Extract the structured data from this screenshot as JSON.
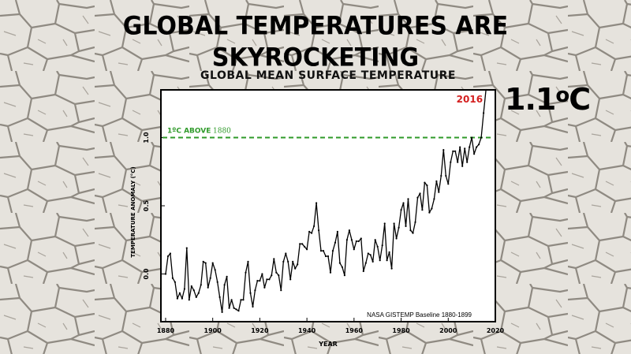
{
  "headline": {
    "line1": "GLOBAL TEMPERATURES ARE",
    "line2": "SKYROCKETING"
  },
  "big_value": {
    "number": "1.1",
    "degree": "o",
    "unit": "C"
  },
  "colors": {
    "line": "#000000",
    "threshold": "#2f9a2a",
    "highlight": "#d42020",
    "plot_bg": "#ffffff"
  },
  "chart_data": {
    "type": "line",
    "title": "GLOBAL MEAN SURFACE TEMPERATURE",
    "xlabel": "YEAR",
    "ylabel": "TEMPERATURE ANOMALY (°C)",
    "xlim": [
      1878,
      2020
    ],
    "ylim": [
      -0.35,
      1.35
    ],
    "xticks": [
      1880,
      1900,
      1920,
      1940,
      1960,
      1980,
      2000,
      2020
    ],
    "yticks": [
      "0.0",
      "0.5",
      "1.0"
    ],
    "ytick_values": [
      0.0,
      0.5,
      1.0
    ],
    "grid": false,
    "threshold": {
      "value": 1.0,
      "label_part1": "1ºC ABOVE",
      "label_part2": "1880"
    },
    "highlight_label": "2016",
    "source_note": "NASA GISTEMP Baseline  1880-1899",
    "series": [
      {
        "x": [
          1880,
          1881,
          1882,
          1883,
          1884,
          1885,
          1886,
          1887,
          1888,
          1889,
          1890,
          1891,
          1892,
          1893,
          1894,
          1895,
          1896,
          1897,
          1898,
          1899,
          1900,
          1901,
          1902,
          1903,
          1904,
          1905,
          1906,
          1907,
          1908,
          1909,
          1910,
          1911,
          1912,
          1913,
          1914,
          1915,
          1916,
          1917,
          1918,
          1919,
          1920,
          1921,
          1922,
          1923,
          1924,
          1925,
          1926,
          1927,
          1928,
          1929,
          1930,
          1931,
          1932,
          1933,
          1934,
          1935,
          1936,
          1937,
          1938,
          1939,
          1940,
          1941,
          1942,
          1943,
          1944,
          1945,
          1946,
          1947,
          1948,
          1949,
          1950,
          1951,
          1952,
          1953,
          1954,
          1955,
          1956,
          1957,
          1958,
          1959,
          1960,
          1961,
          1962,
          1963,
          1964,
          1965,
          1966,
          1967,
          1968,
          1969,
          1970,
          1971,
          1972,
          1973,
          1974,
          1975,
          1976,
          1977,
          1978,
          1979,
          1980,
          1981,
          1982,
          1983,
          1984,
          1985,
          1986,
          1987,
          1988,
          1989,
          1990,
          1991,
          1992,
          1993,
          1994,
          1995,
          1996,
          1997,
          1998,
          1999,
          2000,
          2001,
          2002,
          2003,
          2004,
          2005,
          2006,
          2007,
          2008,
          2009,
          2010,
          2011,
          2012,
          2013,
          2014,
          2015,
          2016
        ],
        "values": [
          0.0,
          0.13,
          0.15,
          -0.03,
          -0.06,
          -0.18,
          -0.14,
          -0.18,
          -0.11,
          0.19,
          -0.19,
          -0.09,
          -0.12,
          -0.17,
          -0.14,
          -0.08,
          0.09,
          0.08,
          -0.1,
          -0.03,
          0.08,
          0.03,
          -0.06,
          -0.17,
          -0.28,
          -0.08,
          -0.02,
          -0.25,
          -0.19,
          -0.25,
          -0.26,
          -0.27,
          -0.19,
          -0.19,
          0.01,
          0.09,
          -0.14,
          -0.24,
          -0.12,
          -0.05,
          -0.05,
          0.0,
          -0.1,
          -0.04,
          -0.04,
          -0.01,
          0.11,
          0.01,
          -0.01,
          -0.12,
          0.09,
          0.15,
          0.09,
          -0.04,
          0.09,
          0.04,
          0.07,
          0.22,
          0.22,
          0.2,
          0.18,
          0.31,
          0.3,
          0.35,
          0.52,
          0.32,
          0.17,
          0.17,
          0.13,
          0.13,
          0.01,
          0.17,
          0.23,
          0.31,
          0.08,
          0.05,
          -0.01,
          0.25,
          0.32,
          0.25,
          0.18,
          0.24,
          0.24,
          0.26,
          0.02,
          0.08,
          0.15,
          0.14,
          0.09,
          0.25,
          0.2,
          0.1,
          0.21,
          0.37,
          0.1,
          0.16,
          0.04,
          0.37,
          0.26,
          0.34,
          0.47,
          0.52,
          0.35,
          0.55,
          0.32,
          0.3,
          0.38,
          0.56,
          0.59,
          0.47,
          0.67,
          0.65,
          0.45,
          0.48,
          0.55,
          0.68,
          0.6,
          0.72,
          0.91,
          0.72,
          0.66,
          0.82,
          0.9,
          0.9,
          0.82,
          0.93,
          0.79,
          0.92,
          0.82,
          0.93,
          1.0,
          0.88,
          0.93,
          0.95,
          1.0,
          1.18,
          1.35
        ]
      }
    ]
  }
}
